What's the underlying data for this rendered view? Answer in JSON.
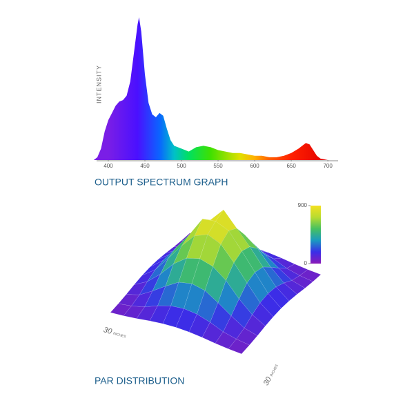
{
  "chart_data": [
    {
      "type": "area",
      "title": "OUTPUT SPECTRUM GRAPH",
      "ylabel": "INTENSITY",
      "x": [
        380,
        385,
        390,
        395,
        400,
        405,
        410,
        415,
        420,
        425,
        430,
        435,
        440,
        442,
        445,
        450,
        455,
        460,
        465,
        470,
        475,
        480,
        485,
        490,
        500,
        510,
        520,
        530,
        540,
        550,
        560,
        570,
        580,
        590,
        600,
        610,
        620,
        630,
        640,
        650,
        660,
        665,
        670,
        675,
        680,
        685,
        690,
        700
      ],
      "values": [
        0,
        2,
        8,
        20,
        28,
        33,
        38,
        41,
        42,
        45,
        55,
        75,
        95,
        100,
        90,
        60,
        40,
        32,
        30,
        33,
        31,
        22,
        14,
        10,
        8,
        6,
        9,
        10,
        9,
        7,
        6,
        5,
        5,
        4,
        3,
        3,
        2,
        2,
        3,
        5,
        8,
        10,
        12,
        11,
        7,
        3,
        1,
        0
      ],
      "xlim": [
        384,
        714
      ],
      "ylim": [
        0,
        100
      ],
      "xticks": [
        400,
        450,
        500,
        550,
        600,
        650,
        700
      ],
      "gradient": [
        {
          "x": 400,
          "color": "#7a1ee6"
        },
        {
          "x": 440,
          "color": "#4a10ff"
        },
        {
          "x": 470,
          "color": "#0a64ff"
        },
        {
          "x": 490,
          "color": "#00c0c8"
        },
        {
          "x": 510,
          "color": "#00e060"
        },
        {
          "x": 540,
          "color": "#40e000"
        },
        {
          "x": 580,
          "color": "#e0e000"
        },
        {
          "x": 600,
          "color": "#ffb000"
        },
        {
          "x": 620,
          "color": "#ff6000"
        },
        {
          "x": 650,
          "color": "#ff2000"
        },
        {
          "x": 700,
          "color": "#e00000"
        }
      ]
    },
    {
      "type": "surface",
      "title": "PAR DISTRIBUTION",
      "xlabel": [
        "30",
        "INCHES"
      ],
      "ylabel": [
        "30",
        "INCHES"
      ],
      "z": [
        [
          55,
          65,
          80,
          100,
          115,
          120,
          115,
          100,
          80,
          65,
          55
        ],
        [
          65,
          85,
          120,
          180,
          225,
          240,
          225,
          180,
          120,
          85,
          65
        ],
        [
          80,
          120,
          210,
          310,
          400,
          430,
          400,
          310,
          210,
          120,
          80
        ],
        [
          100,
          180,
          310,
          470,
          580,
          620,
          580,
          470,
          310,
          180,
          100
        ],
        [
          115,
          225,
          400,
          580,
          740,
          900,
          740,
          580,
          400,
          225,
          115
        ],
        [
          120,
          240,
          430,
          620,
          840,
          860,
          800,
          620,
          430,
          240,
          120
        ],
        [
          115,
          225,
          400,
          580,
          740,
          800,
          740,
          580,
          400,
          225,
          115
        ],
        [
          100,
          180,
          310,
          470,
          580,
          620,
          580,
          470,
          310,
          180,
          100
        ],
        [
          80,
          120,
          210,
          310,
          400,
          430,
          400,
          310,
          210,
          120,
          80
        ],
        [
          65,
          85,
          120,
          180,
          225,
          240,
          225,
          180,
          120,
          85,
          65
        ],
        [
          55,
          65,
          80,
          100,
          115,
          120,
          115,
          100,
          80,
          65,
          55
        ]
      ],
      "zlim": [
        0,
        900
      ],
      "zticks": [
        0,
        900
      ],
      "colorscale": [
        "#8a1ab8",
        "#3a2ee8",
        "#1a9ac0",
        "#46c060",
        "#b8dc30",
        "#f4e020"
      ]
    }
  ]
}
